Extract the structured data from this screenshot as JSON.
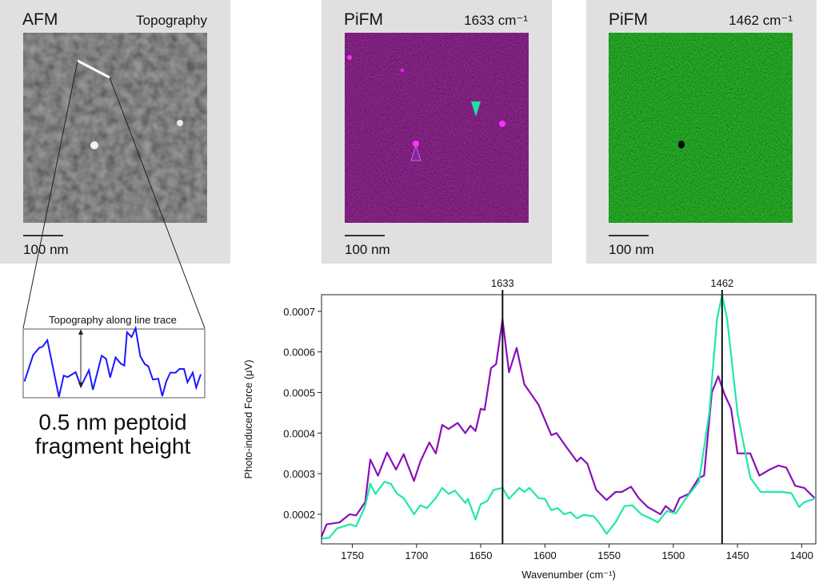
{
  "panels": [
    {
      "title": "AFM",
      "subtitle": "Topography",
      "scale_bar": "100 nm",
      "color": "#888888"
    },
    {
      "title": "PiFM",
      "subtitle": "1633 cm⁻¹",
      "scale_bar": "100 nm",
      "color": "#c020c0"
    },
    {
      "title": "PiFM",
      "subtitle": "1462 cm⁻¹",
      "scale_bar": "100 nm",
      "color": "#1ea01e"
    }
  ],
  "markers": {
    "purple_arrow_color": "#8a20a8",
    "green_arrow_color": "#20e0a0"
  },
  "inset": {
    "title": "Topography along line trace",
    "caption_line1": "0.5 nm peptoid",
    "caption_line2": "fragment height",
    "trace_color": "#1a1aff",
    "trace": [
      [
        0.007,
        0.225
      ],
      [
        0.055,
        0.612
      ],
      [
        0.089,
        0.717
      ],
      [
        0.106,
        0.729
      ],
      [
        0.133,
        0.826
      ],
      [
        0.15,
        0.612
      ],
      [
        0.197,
        0.0
      ],
      [
        0.223,
        0.31
      ],
      [
        0.245,
        0.29
      ],
      [
        0.289,
        0.36
      ],
      [
        0.318,
        0.155
      ],
      [
        0.362,
        0.388
      ],
      [
        0.384,
        0.105
      ],
      [
        0.432,
        0.6
      ],
      [
        0.457,
        0.554
      ],
      [
        0.479,
        0.283
      ],
      [
        0.509,
        0.574
      ],
      [
        0.538,
        0.484
      ],
      [
        0.557,
        0.457
      ],
      [
        0.572,
        0.942
      ],
      [
        0.597,
        0.872
      ],
      [
        0.619,
        1.0
      ],
      [
        0.645,
        0.593
      ],
      [
        0.67,
        0.477
      ],
      [
        0.689,
        0.446
      ],
      [
        0.714,
        0.252
      ],
      [
        0.744,
        0.264
      ],
      [
        0.766,
        0.012
      ],
      [
        0.788,
        0.225
      ],
      [
        0.81,
        0.353
      ],
      [
        0.839,
        0.353
      ],
      [
        0.861,
        0.407
      ],
      [
        0.886,
        0.407
      ],
      [
        0.905,
        0.213
      ],
      [
        0.934,
        0.353
      ],
      [
        0.953,
        0.136
      ],
      [
        0.978,
        0.329
      ]
    ]
  },
  "chart_data": {
    "type": "line",
    "xlabel": "Wavenumber (cm⁻¹)",
    "ylabel": "Photo-induced Force (μV)",
    "xlim": [
      1774,
      1389
    ],
    "ylim": [
      0.000127,
      0.000741
    ],
    "x_reversed": true,
    "grid": false,
    "xticks": [
      1750,
      1700,
      1650,
      1600,
      1550,
      1500,
      1450,
      1400
    ],
    "yticks": [
      "0.0002",
      "0.0003",
      "0.0004",
      "0.0005",
      "0.0006",
      "0.0007"
    ],
    "vlines": [
      {
        "x": 1633,
        "label": "1633"
      },
      {
        "x": 1462,
        "label": "1462"
      }
    ],
    "series": [
      {
        "color": "#8a10b8",
        "points": [
          [
            1774,
            0.000145
          ],
          [
            1770,
            0.000175
          ],
          [
            1760,
            0.00018
          ],
          [
            1752,
            0.0002
          ],
          [
            1747,
            0.000197
          ],
          [
            1740,
            0.00023
          ],
          [
            1736,
            0.000335
          ],
          [
            1730,
            0.000295
          ],
          [
            1723,
            0.000352
          ],
          [
            1716,
            0.00031
          ],
          [
            1710,
            0.000348
          ],
          [
            1702,
            0.000282
          ],
          [
            1697,
            0.00033
          ],
          [
            1690,
            0.000377
          ],
          [
            1685,
            0.00035
          ],
          [
            1680,
            0.00042
          ],
          [
            1675,
            0.00041
          ],
          [
            1668,
            0.000425
          ],
          [
            1662,
            0.0004
          ],
          [
            1658,
            0.000418
          ],
          [
            1654,
            0.000405
          ],
          [
            1650,
            0.00046
          ],
          [
            1647,
            0.000457
          ],
          [
            1642,
            0.00056
          ],
          [
            1638,
            0.00057
          ],
          [
            1633,
            0.00068
          ],
          [
            1628,
            0.00055
          ],
          [
            1622,
            0.00061
          ],
          [
            1616,
            0.00052
          ],
          [
            1605,
            0.00047
          ],
          [
            1595,
            0.000395
          ],
          [
            1591,
            0.0004
          ],
          [
            1582,
            0.00036
          ],
          [
            1575,
            0.00033
          ],
          [
            1572,
            0.00034
          ],
          [
            1567,
            0.000325
          ],
          [
            1560,
            0.00026
          ],
          [
            1552,
            0.000235
          ],
          [
            1545,
            0.000255
          ],
          [
            1540,
            0.000255
          ],
          [
            1533,
            0.000268
          ],
          [
            1527,
            0.00024
          ],
          [
            1520,
            0.000218
          ],
          [
            1510,
            0.0002
          ],
          [
            1506,
            0.00022
          ],
          [
            1500,
            0.000205
          ],
          [
            1495,
            0.00024
          ],
          [
            1488,
            0.00025
          ],
          [
            1480,
            0.00029
          ],
          [
            1476,
            0.000295
          ],
          [
            1470,
            0.0005
          ],
          [
            1465,
            0.00054
          ],
          [
            1460,
            0.000495
          ],
          [
            1455,
            0.00046
          ],
          [
            1450,
            0.00035
          ],
          [
            1440,
            0.00035
          ],
          [
            1433,
            0.000295
          ],
          [
            1425,
            0.00031
          ],
          [
            1418,
            0.00032
          ],
          [
            1412,
            0.000315
          ],
          [
            1405,
            0.00027
          ],
          [
            1398,
            0.000265
          ],
          [
            1390,
            0.00024
          ]
        ]
      },
      {
        "color": "#20e8a8",
        "points": [
          [
            1774,
            0.00014
          ],
          [
            1768,
            0.000142
          ],
          [
            1762,
            0.000165
          ],
          [
            1752,
            0.000175
          ],
          [
            1747,
            0.00017
          ],
          [
            1740,
            0.00022
          ],
          [
            1736,
            0.000275
          ],
          [
            1732,
            0.00025
          ],
          [
            1725,
            0.00028
          ],
          [
            1720,
            0.000275
          ],
          [
            1715,
            0.00025
          ],
          [
            1710,
            0.00024
          ],
          [
            1702,
            0.0002
          ],
          [
            1697,
            0.000222
          ],
          [
            1692,
            0.000215
          ],
          [
            1685,
            0.00024
          ],
          [
            1680,
            0.000265
          ],
          [
            1675,
            0.00025
          ],
          [
            1670,
            0.000258
          ],
          [
            1662,
            0.000228
          ],
          [
            1660,
            0.000238
          ],
          [
            1654,
            0.000187
          ],
          [
            1650,
            0.000225
          ],
          [
            1645,
            0.000232
          ],
          [
            1640,
            0.00026
          ],
          [
            1633,
            0.000265
          ],
          [
            1628,
            0.000238
          ],
          [
            1620,
            0.000265
          ],
          [
            1616,
            0.000255
          ],
          [
            1612,
            0.000265
          ],
          [
            1605,
            0.00024
          ],
          [
            1600,
            0.000238
          ],
          [
            1595,
            0.00021
          ],
          [
            1590,
            0.000215
          ],
          [
            1585,
            0.0002
          ],
          [
            1580,
            0.000205
          ],
          [
            1575,
            0.00019
          ],
          [
            1570,
            0.000198
          ],
          [
            1562,
            0.000195
          ],
          [
            1558,
            0.00018
          ],
          [
            1552,
            0.000152
          ],
          [
            1545,
            0.00018
          ],
          [
            1538,
            0.00022
          ],
          [
            1532,
            0.000222
          ],
          [
            1525,
            0.0002
          ],
          [
            1518,
            0.00019
          ],
          [
            1512,
            0.00018
          ],
          [
            1505,
            0.000208
          ],
          [
            1498,
            0.000202
          ],
          [
            1490,
            0.00024
          ],
          [
            1480,
            0.00028
          ],
          [
            1472,
            0.00045
          ],
          [
            1466,
            0.00068
          ],
          [
            1462,
            0.00074
          ],
          [
            1458,
            0.00068
          ],
          [
            1450,
            0.00045
          ],
          [
            1440,
            0.00029
          ],
          [
            1432,
            0.000255
          ],
          [
            1425,
            0.000255
          ],
          [
            1415,
            0.000255
          ],
          [
            1408,
            0.000252
          ],
          [
            1402,
            0.000218
          ],
          [
            1398,
            0.00023
          ],
          [
            1390,
            0.000238
          ]
        ]
      }
    ]
  }
}
